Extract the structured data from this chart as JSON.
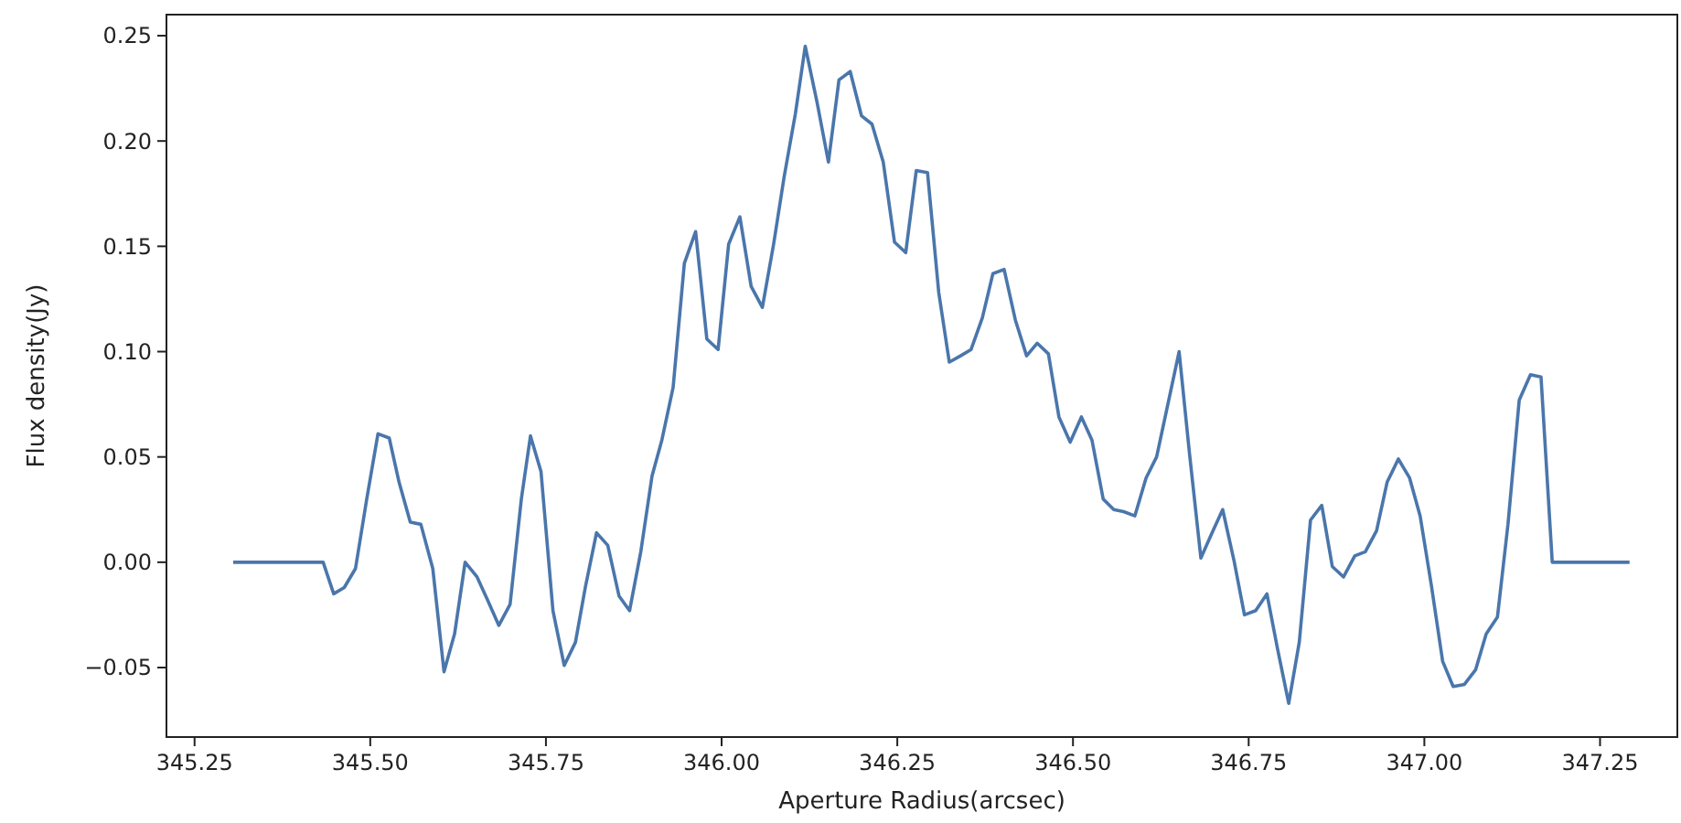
{
  "chart_data": {
    "type": "line",
    "xlabel": "Aperture Radius(arcsec)",
    "ylabel": "Flux density(Jy)",
    "xlim": [
      345.21,
      347.36
    ],
    "ylim": [
      -0.083,
      0.26
    ],
    "xticks": [
      {
        "value": 345.25,
        "label": "345.25"
      },
      {
        "value": 345.5,
        "label": "345.50"
      },
      {
        "value": 345.75,
        "label": "345.75"
      },
      {
        "value": 346,
        "label": "346.00"
      },
      {
        "value": 346.25,
        "label": "346.25"
      },
      {
        "value": 346.5,
        "label": "346.50"
      },
      {
        "value": 346.75,
        "label": "346.75"
      },
      {
        "value": 347,
        "label": "347.00"
      },
      {
        "value": 347.25,
        "label": "347.25"
      }
    ],
    "yticks": [
      {
        "value": -0.05,
        "label": "−0.05"
      },
      {
        "value": 0,
        "label": "0.00"
      },
      {
        "value": 0.05,
        "label": "0.05"
      },
      {
        "value": 0.1,
        "label": "0.10"
      },
      {
        "value": 0.15,
        "label": "0.15"
      },
      {
        "value": 0.2,
        "label": "0.20"
      },
      {
        "value": 0.25,
        "label": "0.25"
      }
    ],
    "x": [
      345.305,
      345.433,
      345.448,
      345.463,
      345.479,
      345.495,
      345.511,
      345.527,
      345.541,
      345.557,
      345.572,
      345.589,
      345.605,
      345.62,
      345.635,
      345.652,
      345.667,
      345.683,
      345.699,
      345.715,
      345.728,
      345.743,
      345.76,
      345.776,
      345.792,
      345.806,
      345.822,
      345.838,
      345.854,
      345.869,
      345.885,
      345.901,
      345.915,
      345.931,
      345.947,
      345.963,
      345.979,
      345.995,
      346.01,
      346.026,
      346.042,
      346.058,
      346.074,
      346.089,
      346.105,
      346.119,
      346.136,
      346.152,
      346.167,
      346.183,
      346.199,
      346.214,
      346.23,
      346.246,
      346.262,
      346.277,
      346.293,
      346.309,
      346.324,
      346.34,
      346.355,
      346.371,
      346.386,
      346.402,
      346.418,
      346.434,
      346.449,
      346.465,
      346.48,
      346.496,
      346.512,
      346.527,
      346.543,
      346.558,
      346.572,
      346.588,
      346.604,
      346.619,
      346.635,
      346.651,
      346.666,
      346.682,
      346.698,
      346.713,
      346.729,
      346.744,
      346.76,
      346.776,
      346.791,
      346.807,
      346.822,
      346.838,
      346.854,
      346.869,
      346.885,
      346.901,
      346.916,
      346.932,
      346.947,
      346.963,
      346.979,
      346.994,
      347.01,
      347.026,
      347.041,
      347.057,
      347.073,
      347.088,
      347.104,
      347.119,
      347.135,
      347.151,
      347.166,
      347.182,
      347.292
    ],
    "series": [
      {
        "color": "#4a76ab",
        "values": [
          0,
          0,
          -0.015,
          -0.012,
          -0.003,
          0.03,
          0.061,
          0.059,
          0.038,
          0.019,
          0.018,
          -0.003,
          -0.052,
          -0.034,
          0,
          -0.007,
          -0.018,
          -0.03,
          -0.02,
          0.03,
          0.06,
          0.043,
          -0.023,
          -0.049,
          -0.038,
          -0.012,
          0.014,
          0.008,
          -0.016,
          -0.023,
          0.005,
          0.041,
          0.058,
          0.083,
          0.142,
          0.157,
          0.106,
          0.101,
          0.151,
          0.164,
          0.131,
          0.121,
          0.151,
          0.183,
          0.213,
          0.245,
          0.218,
          0.19,
          0.229,
          0.233,
          0.212,
          0.208,
          0.19,
          0.152,
          0.147,
          0.186,
          0.185,
          0.128,
          0.095,
          0.098,
          0.101,
          0.116,
          0.137,
          0.139,
          0.115,
          0.098,
          0.104,
          0.099,
          0.069,
          0.057,
          0.069,
          0.058,
          0.03,
          0.025,
          0.024,
          0.022,
          0.04,
          0.05,
          0.075,
          0.1,
          0.051,
          0.002,
          0.014,
          0.025,
          0.001,
          -0.025,
          -0.023,
          -0.015,
          -0.041,
          -0.067,
          -0.038,
          0.02,
          0.027,
          -0.002,
          -0.007,
          0.003,
          0.005,
          0.015,
          0.038,
          0.049,
          0.04,
          0.022,
          -0.011,
          -0.047,
          -0.059,
          -0.058,
          -0.051,
          -0.034,
          -0.026,
          0.018,
          0.077,
          0.089,
          0.088,
          0,
          0
        ]
      }
    ]
  }
}
